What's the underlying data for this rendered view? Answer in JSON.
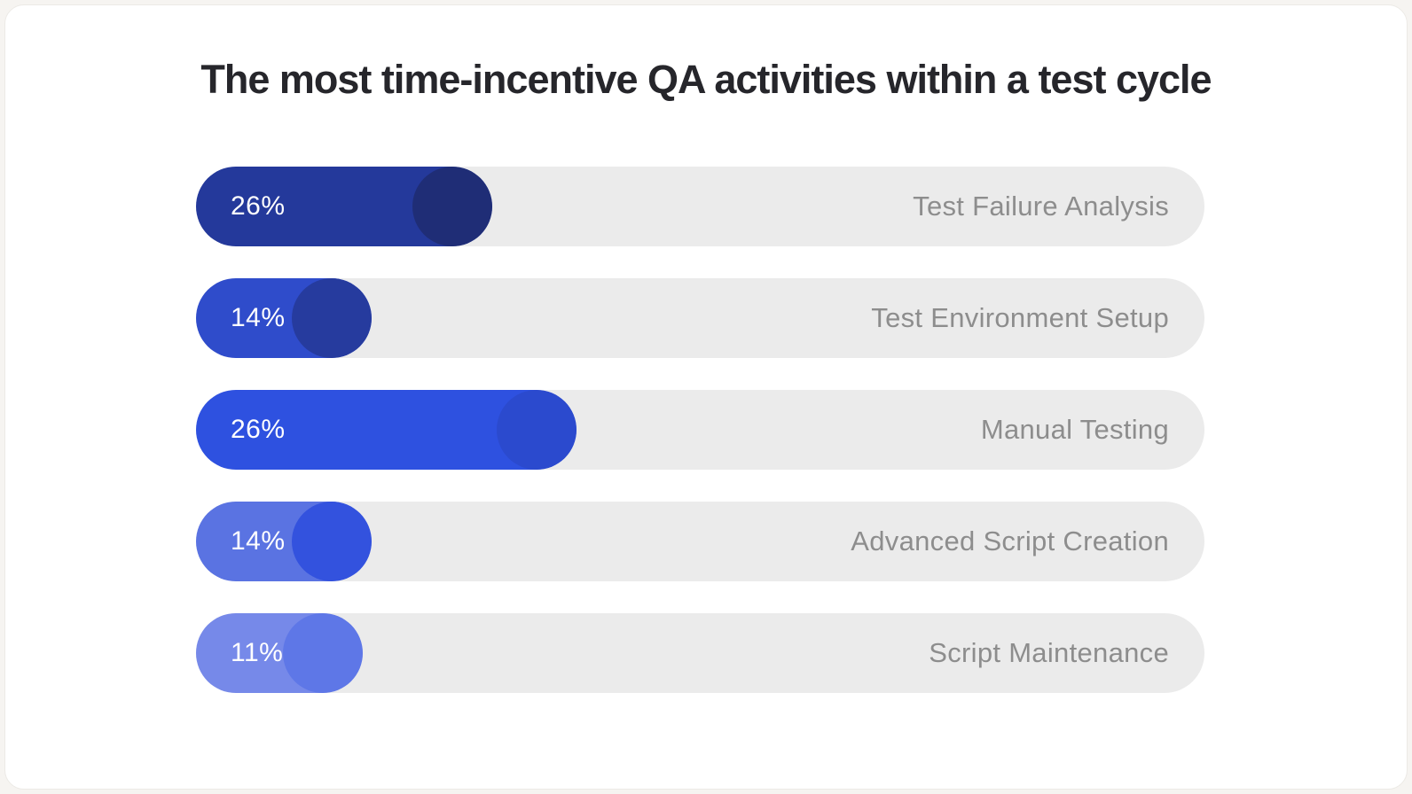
{
  "title": "The most time-incentive QA activities within a test cycle",
  "colors": {
    "page_background": "#f6f4f1",
    "card_background": "#ffffff",
    "track": "#ebebeb",
    "title_text": "#26262b",
    "category_text": "#8d8d8d",
    "value_text": "#ffffff"
  },
  "chart_data": {
    "type": "bar",
    "orientation": "horizontal",
    "title": "The most time-incentive QA activities within a test cycle",
    "xlabel": "",
    "ylabel": "",
    "grid": false,
    "legend": false,
    "categories": [
      "Test Failure Analysis",
      "Test Environment Setup",
      "Manual Testing",
      "Advanced Script Creation",
      "Script Maintenance"
    ],
    "values": [
      26,
      14,
      26,
      14,
      11
    ],
    "value_labels": [
      "26%",
      "14%",
      "26%",
      "14%",
      "11%"
    ],
    "bars": [
      {
        "label": "Test Failure Analysis",
        "value": 26,
        "value_label": "26%",
        "fill_pct": 29.4,
        "fill_color": "#24399b",
        "knob_color": "#1f2d76"
      },
      {
        "label": "Test Environment Setup",
        "value": 14,
        "value_label": "14%",
        "fill_pct": 17.4,
        "fill_color": "#2f4ccb",
        "knob_color": "#263b9e"
      },
      {
        "label": "Manual Testing",
        "value": 26,
        "value_label": "26%",
        "fill_pct": 37.7,
        "fill_color": "#2e51e0",
        "knob_color": "#2b4ace"
      },
      {
        "label": "Advanced Script Creation",
        "value": 14,
        "value_label": "14%",
        "fill_pct": 17.4,
        "fill_color": "#5a73e2",
        "knob_color": "#3352de"
      },
      {
        "label": "Script Maintenance",
        "value": 11,
        "value_label": "11%",
        "fill_pct": 16.5,
        "fill_color": "#7689e9",
        "knob_color": "#5e77e7"
      }
    ]
  }
}
